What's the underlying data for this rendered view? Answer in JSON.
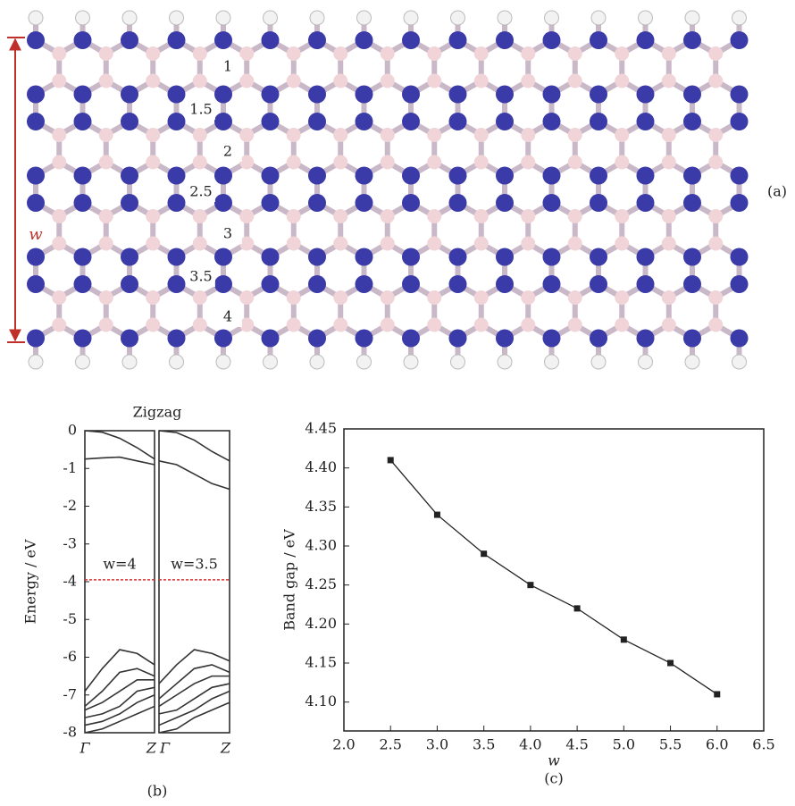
{
  "structure": {
    "labels": [
      "1",
      "1.5",
      "2",
      "2.5",
      "3",
      "3.5",
      "4"
    ],
    "width_label": "w",
    "caption": "(a)"
  },
  "chart_data": [
    {
      "type": "band",
      "title": "Zigzag",
      "ylabel": "Energy / eV",
      "ylim": [
        -8,
        0
      ],
      "yticks": [
        0,
        -1,
        -2,
        -3,
        -4,
        -5,
        -6,
        -7,
        -8
      ],
      "caption": "(b)",
      "line_color": "#333333",
      "fermi_color": "#e03030",
      "panels": [
        {
          "annotation": "w=4",
          "xlabels": [
            "Γ",
            "Z"
          ],
          "fermi": -3.95,
          "x": [
            0,
            0.25,
            0.5,
            0.75,
            1
          ],
          "bands": [
            [
              0,
              -0.04,
              -0.2,
              -0.45,
              -0.75
            ],
            [
              -0.75,
              -0.72,
              -0.7,
              -0.8,
              -0.9
            ],
            [
              -6.9,
              -6.3,
              -5.8,
              -5.9,
              -6.2
            ],
            [
              -7.3,
              -6.9,
              -6.4,
              -6.3,
              -6.5
            ],
            [
              -7.4,
              -7.2,
              -6.9,
              -6.6,
              -6.6
            ],
            [
              -7.6,
              -7.5,
              -7.3,
              -6.9,
              -6.8
            ],
            [
              -7.8,
              -7.7,
              -7.5,
              -7.2,
              -7.0
            ],
            [
              -8,
              -7.9,
              -7.7,
              -7.5,
              -7.3
            ]
          ]
        },
        {
          "annotation": "w=3.5",
          "xlabels": [
            "Γ",
            "Z"
          ],
          "fermi": -3.95,
          "x": [
            0,
            0.25,
            0.5,
            0.75,
            1
          ],
          "bands": [
            [
              0,
              -0.05,
              -0.25,
              -0.55,
              -0.8
            ],
            [
              -0.8,
              -0.9,
              -1.15,
              -1.4,
              -1.55
            ],
            [
              -6.7,
              -6.2,
              -5.8,
              -5.9,
              -6.1
            ],
            [
              -7.1,
              -6.7,
              -6.3,
              -6.2,
              -6.4
            ],
            [
              -7.3,
              -7.0,
              -6.7,
              -6.5,
              -6.5
            ],
            [
              -7.5,
              -7.4,
              -7.1,
              -6.8,
              -6.7
            ],
            [
              -7.8,
              -7.6,
              -7.4,
              -7.1,
              -6.9
            ],
            [
              -8,
              -7.9,
              -7.6,
              -7.4,
              -7.2
            ]
          ]
        }
      ]
    },
    {
      "type": "line",
      "xlabel": "w",
      "ylabel": "Band gap / eV",
      "caption": "(c)",
      "color": "#222222",
      "x": [
        2.5,
        3.0,
        3.5,
        4.0,
        4.5,
        5.0,
        5.5,
        6.0
      ],
      "values": [
        4.41,
        4.34,
        4.29,
        4.25,
        4.22,
        4.18,
        4.15,
        4.11
      ],
      "xlim": [
        2,
        6.5
      ],
      "ylim": [
        4.063,
        4.45
      ],
      "xticks": [
        {
          "value": 2,
          "label": "2.0"
        },
        2.5,
        {
          "value": 3,
          "label": "3.0"
        },
        3.5,
        {
          "value": 4,
          "label": "4.0"
        },
        4.5,
        {
          "value": 5,
          "label": "5.0"
        },
        5.5,
        {
          "value": 6,
          "label": "6.0"
        },
        6.5
      ],
      "yticks": [
        {
          "value": 4.1,
          "label": "4.10"
        },
        4.15,
        {
          "value": 4.2,
          "label": "4.20"
        },
        4.25,
        {
          "value": 4.3,
          "label": "4.30"
        },
        4.35,
        {
          "value": 4.4,
          "label": "4.40"
        },
        4.45
      ]
    }
  ]
}
